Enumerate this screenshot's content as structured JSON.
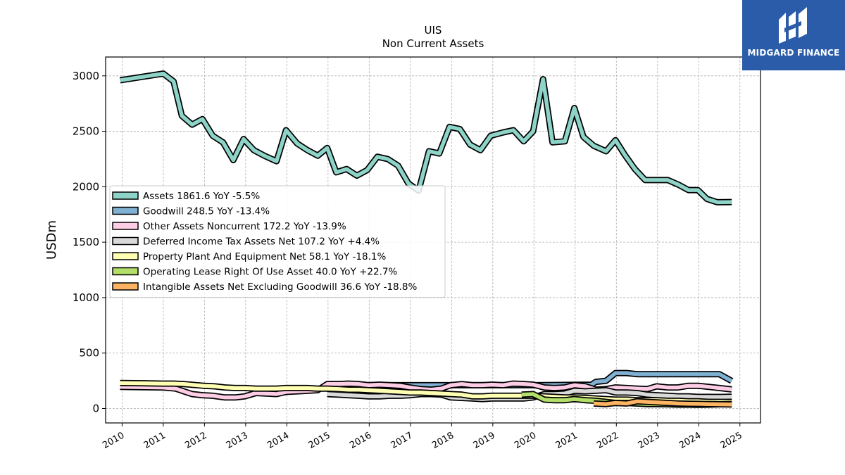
{
  "chart_data": {
    "type": "area",
    "title": "UIS",
    "subtitle": "Non Current  Assets",
    "ylabel": "USDm",
    "xlabel": "",
    "xlim": [
      2009.6,
      2025.5
    ],
    "ylim": [
      -130,
      3170
    ],
    "yticks": [
      0,
      500,
      1000,
      1500,
      2000,
      2500,
      3000
    ],
    "xticks": [
      2010,
      2011,
      2012,
      2013,
      2014,
      2015,
      2016,
      2017,
      2018,
      2019,
      2020,
      2021,
      2022,
      2023,
      2024,
      2025
    ],
    "grid": true,
    "legend_position": "center-left",
    "series": [
      {
        "name": "Assets",
        "legend": "Assets  1861.6 YoY -5.5%",
        "color": "#8dd3c7",
        "points": [
          [
            2009.95,
            2960
          ],
          [
            2011.0,
            3020
          ],
          [
            2011.25,
            2950
          ],
          [
            2011.45,
            2640
          ],
          [
            2011.7,
            2560
          ],
          [
            2011.95,
            2610
          ],
          [
            2012.2,
            2460
          ],
          [
            2012.45,
            2400
          ],
          [
            2012.7,
            2240
          ],
          [
            2012.95,
            2430
          ],
          [
            2013.2,
            2330
          ],
          [
            2013.45,
            2280
          ],
          [
            2013.75,
            2230
          ],
          [
            2013.98,
            2510
          ],
          [
            2014.25,
            2390
          ],
          [
            2014.5,
            2330
          ],
          [
            2014.75,
            2280
          ],
          [
            2014.98,
            2350
          ],
          [
            2015.2,
            2130
          ],
          [
            2015.45,
            2160
          ],
          [
            2015.7,
            2100
          ],
          [
            2015.95,
            2150
          ],
          [
            2016.2,
            2270
          ],
          [
            2016.45,
            2250
          ],
          [
            2016.7,
            2190
          ],
          [
            2016.95,
            2030
          ],
          [
            2017.2,
            1965
          ],
          [
            2017.45,
            2320
          ],
          [
            2017.7,
            2300
          ],
          [
            2017.95,
            2540
          ],
          [
            2018.2,
            2520
          ],
          [
            2018.45,
            2380
          ],
          [
            2018.7,
            2330
          ],
          [
            2018.95,
            2460
          ],
          [
            2019.25,
            2490
          ],
          [
            2019.5,
            2510
          ],
          [
            2019.75,
            2410
          ],
          [
            2019.98,
            2500
          ],
          [
            2020.22,
            2970
          ],
          [
            2020.45,
            2400
          ],
          [
            2020.75,
            2410
          ],
          [
            2020.98,
            2710
          ],
          [
            2021.2,
            2450
          ],
          [
            2021.45,
            2370
          ],
          [
            2021.75,
            2320
          ],
          [
            2021.98,
            2420
          ],
          [
            2022.2,
            2290
          ],
          [
            2022.45,
            2160
          ],
          [
            2022.7,
            2060
          ],
          [
            2022.98,
            2060
          ],
          [
            2023.25,
            2060
          ],
          [
            2023.5,
            2020
          ],
          [
            2023.75,
            1970
          ],
          [
            2023.98,
            1970
          ],
          [
            2024.2,
            1890
          ],
          [
            2024.45,
            1860
          ],
          [
            2024.8,
            1862
          ]
        ]
      },
      {
        "name": "Goodwill",
        "legend": "Goodwill  248.5 YoY -13.4%",
        "color": "#80b1d3",
        "points": [
          [
            2015.98,
            210
          ],
          [
            2017.95,
            210
          ],
          [
            2019.98,
            210
          ],
          [
            2021.4,
            215
          ],
          [
            2021.5,
            240
          ],
          [
            2021.75,
            250
          ],
          [
            2021.98,
            320
          ],
          [
            2022.25,
            320
          ],
          [
            2022.5,
            310
          ],
          [
            2022.75,
            310
          ],
          [
            2022.98,
            310
          ],
          [
            2023.5,
            310
          ],
          [
            2023.98,
            310
          ],
          [
            2024.5,
            310
          ],
          [
            2024.8,
            249
          ]
        ]
      },
      {
        "name": "Other Assets Noncurrent",
        "legend": "Other Assets Noncurrent  172.2 YoY -13.9%",
        "color": "#fccde5",
        "points": [
          [
            2009.95,
            195
          ],
          [
            2011.0,
            190
          ],
          [
            2011.3,
            180
          ],
          [
            2011.7,
            130
          ],
          [
            2011.95,
            120
          ],
          [
            2012.2,
            115
          ],
          [
            2012.5,
            100
          ],
          [
            2012.75,
            100
          ],
          [
            2012.98,
            110
          ],
          [
            2013.25,
            140
          ],
          [
            2013.5,
            135
          ],
          [
            2013.75,
            130
          ],
          [
            2013.98,
            150
          ],
          [
            2014.25,
            155
          ],
          [
            2014.75,
            165
          ],
          [
            2014.98,
            220
          ],
          [
            2015.25,
            220
          ],
          [
            2015.5,
            225
          ],
          [
            2015.75,
            220
          ],
          [
            2015.98,
            210
          ],
          [
            2016.25,
            215
          ],
          [
            2016.5,
            210
          ],
          [
            2016.75,
            205
          ],
          [
            2016.98,
            190
          ],
          [
            2017.25,
            175
          ],
          [
            2017.5,
            170
          ],
          [
            2017.75,
            180
          ],
          [
            2017.98,
            210
          ],
          [
            2018.25,
            220
          ],
          [
            2018.5,
            210
          ],
          [
            2018.75,
            210
          ],
          [
            2018.98,
            215
          ],
          [
            2019.25,
            210
          ],
          [
            2019.5,
            225
          ],
          [
            2019.75,
            220
          ],
          [
            2019.98,
            215
          ],
          [
            2020.25,
            190
          ],
          [
            2020.5,
            185
          ],
          [
            2020.75,
            190
          ],
          [
            2020.98,
            210
          ],
          [
            2021.25,
            200
          ],
          [
            2021.5,
            170
          ],
          [
            2021.75,
            175
          ],
          [
            2021.98,
            190
          ],
          [
            2022.25,
            185
          ],
          [
            2022.5,
            180
          ],
          [
            2022.75,
            175
          ],
          [
            2022.98,
            200
          ],
          [
            2023.25,
            190
          ],
          [
            2023.5,
            190
          ],
          [
            2023.75,
            205
          ],
          [
            2023.98,
            205
          ],
          [
            2024.25,
            195
          ],
          [
            2024.5,
            185
          ],
          [
            2024.8,
            172
          ]
        ]
      },
      {
        "name": "Deferred Income Tax Assets Net",
        "legend": "Deferred Income Tax Assets Net  107.2 YoY +4.4%",
        "color": "#d9d9d9",
        "points": [
          [
            2014.98,
            130
          ],
          [
            2015.25,
            125
          ],
          [
            2015.5,
            120
          ],
          [
            2015.75,
            115
          ],
          [
            2015.98,
            110
          ],
          [
            2016.25,
            110
          ],
          [
            2016.5,
            115
          ],
          [
            2016.75,
            115
          ],
          [
            2016.98,
            120
          ],
          [
            2017.25,
            130
          ],
          [
            2017.5,
            130
          ],
          [
            2017.75,
            125
          ],
          [
            2017.98,
            100
          ],
          [
            2018.25,
            95
          ],
          [
            2018.5,
            90
          ],
          [
            2018.75,
            85
          ],
          [
            2018.98,
            90
          ],
          [
            2019.25,
            90
          ],
          [
            2019.5,
            90
          ],
          [
            2019.75,
            90
          ],
          [
            2019.98,
            100
          ],
          [
            2020.25,
            130
          ],
          [
            2020.5,
            130
          ],
          [
            2020.75,
            135
          ],
          [
            2020.98,
            160
          ],
          [
            2021.25,
            155
          ],
          [
            2021.5,
            160
          ],
          [
            2021.75,
            165
          ],
          [
            2021.98,
            145
          ],
          [
            2022.25,
            145
          ],
          [
            2022.5,
            140
          ],
          [
            2022.75,
            125
          ],
          [
            2022.98,
            120
          ],
          [
            2023.25,
            115
          ],
          [
            2023.5,
            110
          ],
          [
            2023.75,
            110
          ],
          [
            2023.98,
            105
          ],
          [
            2024.25,
            105
          ],
          [
            2024.5,
            104
          ],
          [
            2024.8,
            107
          ]
        ]
      },
      {
        "name": "Property Plant And Equipment Net",
        "legend": "Property Plant And Equipment Net  58.1 YoY -18.1%",
        "color": "#ffffb3",
        "points": [
          [
            2009.95,
            230
          ],
          [
            2010.5,
            228
          ],
          [
            2010.98,
            225
          ],
          [
            2011.25,
            225
          ],
          [
            2011.5,
            220
          ],
          [
            2011.98,
            205
          ],
          [
            2012.25,
            200
          ],
          [
            2012.5,
            190
          ],
          [
            2012.75,
            185
          ],
          [
            2012.98,
            185
          ],
          [
            2013.25,
            180
          ],
          [
            2013.5,
            180
          ],
          [
            2013.75,
            180
          ],
          [
            2013.98,
            185
          ],
          [
            2014.25,
            185
          ],
          [
            2014.5,
            185
          ],
          [
            2014.75,
            180
          ],
          [
            2014.98,
            180
          ],
          [
            2015.25,
            175
          ],
          [
            2015.5,
            170
          ],
          [
            2015.75,
            170
          ],
          [
            2015.98,
            165
          ],
          [
            2016.25,
            160
          ],
          [
            2016.5,
            155
          ],
          [
            2016.75,
            150
          ],
          [
            2016.98,
            145
          ],
          [
            2017.25,
            145
          ],
          [
            2017.5,
            140
          ],
          [
            2017.75,
            135
          ],
          [
            2017.98,
            130
          ],
          [
            2018.25,
            125
          ],
          [
            2018.5,
            110
          ],
          [
            2018.75,
            110
          ],
          [
            2018.98,
            115
          ],
          [
            2019.25,
            115
          ],
          [
            2019.5,
            115
          ],
          [
            2019.75,
            115
          ],
          [
            2019.98,
            115
          ],
          [
            2020.25,
            110
          ],
          [
            2020.5,
            105
          ],
          [
            2020.75,
            100
          ],
          [
            2020.98,
            100
          ],
          [
            2021.25,
            95
          ],
          [
            2021.5,
            90
          ],
          [
            2021.75,
            85
          ],
          [
            2021.98,
            80
          ],
          [
            2022.25,
            80
          ],
          [
            2022.5,
            75
          ],
          [
            2022.75,
            75
          ],
          [
            2022.98,
            75
          ],
          [
            2023.25,
            70
          ],
          [
            2023.5,
            70
          ],
          [
            2023.75,
            65
          ],
          [
            2023.98,
            65
          ],
          [
            2024.25,
            60
          ],
          [
            2024.5,
            60
          ],
          [
            2024.8,
            58
          ]
        ]
      },
      {
        "name": "Operating Lease Right Of Use Asset",
        "legend": "Operating Lease Right Of Use Asset  40.0 YoY +22.7%",
        "color": "#b3de69",
        "points": [
          [
            2019.7,
            125
          ],
          [
            2019.98,
            130
          ],
          [
            2020.25,
            80
          ],
          [
            2020.5,
            75
          ],
          [
            2020.75,
            75
          ],
          [
            2020.98,
            85
          ],
          [
            2021.25,
            75
          ],
          [
            2021.5,
            70
          ],
          [
            2021.75,
            60
          ],
          [
            2021.98,
            50
          ],
          [
            2022.25,
            50
          ],
          [
            2022.5,
            45
          ],
          [
            2022.75,
            40
          ],
          [
            2022.98,
            40
          ],
          [
            2023.25,
            38
          ],
          [
            2023.5,
            35
          ],
          [
            2023.75,
            35
          ],
          [
            2023.98,
            33
          ],
          [
            2024.25,
            35
          ],
          [
            2024.5,
            38
          ],
          [
            2024.8,
            40
          ]
        ]
      },
      {
        "name": "Intangible Assets Net Excluding Goodwill",
        "legend": "Intangible Assets Net Excluding Goodwill  36.6 YoY -18.8%",
        "color": "#fdb462",
        "points": [
          [
            2021.45,
            45
          ],
          [
            2021.75,
            40
          ],
          [
            2021.98,
            50
          ],
          [
            2022.25,
            45
          ],
          [
            2022.5,
            65
          ],
          [
            2022.75,
            60
          ],
          [
            2022.98,
            55
          ],
          [
            2023.25,
            50
          ],
          [
            2023.5,
            45
          ],
          [
            2023.75,
            43
          ],
          [
            2023.98,
            42
          ],
          [
            2024.25,
            40
          ],
          [
            2024.5,
            38
          ],
          [
            2024.8,
            37
          ]
        ]
      }
    ]
  },
  "logo": {
    "text": "MIDGARD FINANCE"
  }
}
